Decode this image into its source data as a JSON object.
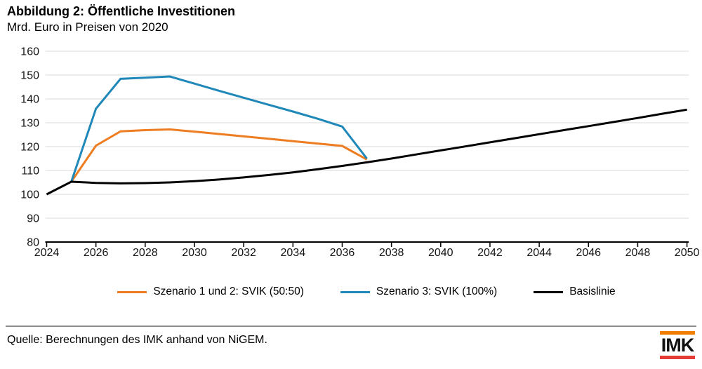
{
  "header": {
    "title": "Abbildung 2: Öffentliche Investitionen",
    "subtitle": "Mrd. Euro in Preisen von 2020"
  },
  "chart_data": {
    "type": "line",
    "title": "Abbildung 2: Öffentliche Investitionen",
    "subtitle": "Mrd. Euro in Preisen von 2020",
    "xlabel": "",
    "ylabel": "",
    "xlim": [
      2024,
      2050
    ],
    "ylim": [
      80,
      160
    ],
    "xticks": [
      2024,
      2026,
      2028,
      2030,
      2032,
      2034,
      2036,
      2038,
      2040,
      2042,
      2044,
      2046,
      2048,
      2050
    ],
    "yticks": [
      80,
      90,
      100,
      110,
      120,
      130,
      140,
      150,
      160
    ],
    "grid": "horizontal",
    "gridline_color": "#d9d9d9",
    "legend_position": "bottom",
    "series": [
      {
        "name": "Szenario 1 und 2: SVIK (50:50)",
        "color": "#EE7D22",
        "x": [
          2025,
          2026,
          2027,
          2028,
          2029,
          2030,
          2031,
          2032,
          2033,
          2034,
          2035,
          2036,
          2037
        ],
        "values": [
          105.3,
          120.4,
          126.4,
          126.9,
          127.2,
          126.3,
          125.3,
          124.3,
          123.3,
          122.3,
          121.3,
          120.3,
          114.6
        ]
      },
      {
        "name": "Szenario 3: SVIK (100%)",
        "color": "#1F88B8",
        "x": [
          2025,
          2026,
          2027,
          2028,
          2029,
          2030,
          2031,
          2032,
          2033,
          2034,
          2035,
          2036,
          2037
        ],
        "values": [
          105.3,
          135.9,
          148.4,
          148.9,
          149.4,
          146.4,
          143.4,
          140.5,
          137.6,
          134.7,
          131.7,
          128.4,
          115.0
        ]
      },
      {
        "name": "Basislinie",
        "color": "#000000",
        "x": [
          2024,
          2025,
          2026,
          2027,
          2028,
          2029,
          2030,
          2031,
          2032,
          2033,
          2034,
          2035,
          2036,
          2037,
          2038,
          2039,
          2040,
          2041,
          2042,
          2043,
          2044,
          2045,
          2046,
          2047,
          2048,
          2049,
          2050
        ],
        "values": [
          100.0,
          105.3,
          104.8,
          104.6,
          104.7,
          105.0,
          105.5,
          106.2,
          107.1,
          108.1,
          109.2,
          110.5,
          111.9,
          113.4,
          115.0,
          116.7,
          118.4,
          120.1,
          121.8,
          123.5,
          125.2,
          126.9,
          128.6,
          130.3,
          132.0,
          133.8,
          135.5
        ]
      }
    ]
  },
  "footer": {
    "source": "Quelle: Berechnungen des IMK anhand von NiGEM.",
    "logo_text": "IMK",
    "logo_colors": {
      "top": "#F07E00",
      "bottom": "#E63B34"
    }
  }
}
